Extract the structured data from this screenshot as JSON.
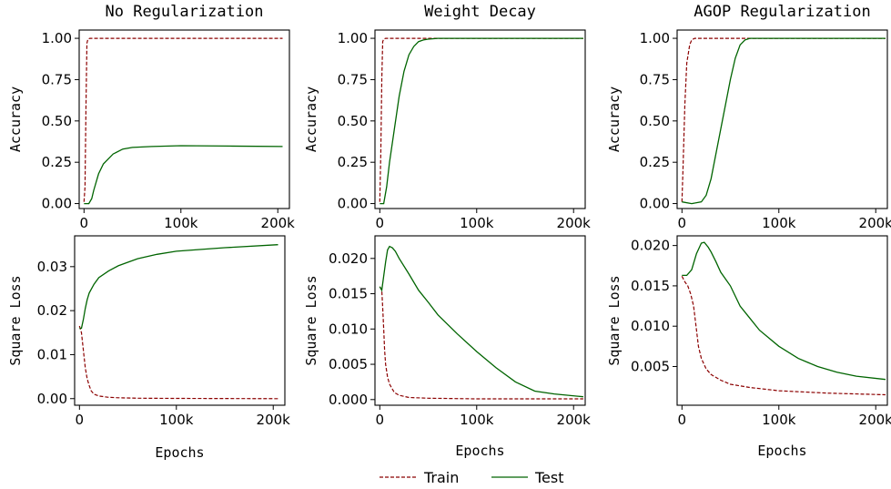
{
  "colors": {
    "train": "#8b0000",
    "test": "#006400"
  },
  "legend": {
    "placement": "bottom-center",
    "items": [
      {
        "key": "train",
        "label": "Train",
        "style": "dashed"
      },
      {
        "key": "test",
        "label": "Test",
        "style": "solid"
      }
    ]
  },
  "chart_data": [
    {
      "type": "line",
      "title": "No Regularization",
      "ylabel": "Accuracy",
      "xlabel": "",
      "xlim": [
        -5000,
        212000
      ],
      "ylim": [
        -0.03,
        1.05
      ],
      "xticks": [
        0,
        100000,
        200000
      ],
      "xtick_labels": [
        "0",
        "100k",
        "200k"
      ],
      "yticks": [
        0,
        0.25,
        0.5,
        0.75,
        1.0
      ],
      "ytick_labels": [
        "0.00",
        "0.25",
        "0.50",
        "0.75",
        "1.00"
      ],
      "series": [
        {
          "name": "Train",
          "x": [
            0,
            1000,
            2000,
            3000,
            4000,
            6000,
            10000,
            205000
          ],
          "y": [
            0.01,
            0.1,
            0.6,
            0.97,
            0.995,
            1.0,
            1.0,
            1.0
          ]
        },
        {
          "name": "Test",
          "x": [
            0,
            2000,
            5000,
            8000,
            10000,
            15000,
            20000,
            30000,
            40000,
            50000,
            70000,
            100000,
            150000,
            205000
          ],
          "y": [
            0.0,
            0.0,
            0.0,
            0.03,
            0.08,
            0.18,
            0.24,
            0.3,
            0.33,
            0.34,
            0.345,
            0.35,
            0.348,
            0.345
          ]
        }
      ]
    },
    {
      "type": "line",
      "title": "Weight Decay",
      "ylabel": "Accuracy",
      "xlabel": "",
      "xlim": [
        -5000,
        212000
      ],
      "ylim": [
        -0.03,
        1.05
      ],
      "xticks": [
        0,
        100000,
        200000
      ],
      "xtick_labels": [
        "0",
        "100k",
        "200k"
      ],
      "yticks": [
        0,
        0.25,
        0.5,
        0.75,
        1.0
      ],
      "ytick_labels": [
        "0.00",
        "0.25",
        "0.50",
        "0.75",
        "1.00"
      ],
      "series": [
        {
          "name": "Train",
          "x": [
            0,
            1000,
            2000,
            3000,
            4000,
            6000,
            10000,
            210000
          ],
          "y": [
            0.01,
            0.3,
            0.75,
            0.98,
            0.995,
            1.0,
            1.0,
            1.0
          ]
        },
        {
          "name": "Test",
          "x": [
            0,
            4000,
            7000,
            10000,
            15000,
            20000,
            25000,
            30000,
            35000,
            40000,
            45000,
            50000,
            60000,
            80000,
            210000
          ],
          "y": [
            0.0,
            0.0,
            0.1,
            0.25,
            0.45,
            0.65,
            0.8,
            0.9,
            0.95,
            0.98,
            0.99,
            0.995,
            1.0,
            1.0,
            1.0
          ]
        }
      ]
    },
    {
      "type": "line",
      "title": "AGOP Regularization",
      "ylabel": "Accuracy",
      "xlabel": "",
      "xlim": [
        -5000,
        212000
      ],
      "ylim": [
        -0.03,
        1.05
      ],
      "xticks": [
        0,
        100000,
        200000
      ],
      "xtick_labels": [
        "0",
        "100k",
        "200k"
      ],
      "yticks": [
        0,
        0.25,
        0.5,
        0.75,
        1.0
      ],
      "ytick_labels": [
        "0.00",
        "0.25",
        "0.50",
        "0.75",
        "1.00"
      ],
      "series": [
        {
          "name": "Train",
          "x": [
            0,
            1000,
            3000,
            5000,
            8000,
            10000,
            13000,
            20000,
            210000
          ],
          "y": [
            0.01,
            0.2,
            0.6,
            0.85,
            0.96,
            0.99,
            1.0,
            1.0,
            1.0
          ]
        },
        {
          "name": "Test",
          "x": [
            0,
            10000,
            20000,
            25000,
            30000,
            35000,
            40000,
            45000,
            50000,
            55000,
            60000,
            65000,
            70000,
            80000,
            210000
          ],
          "y": [
            0.01,
            0.0,
            0.01,
            0.05,
            0.15,
            0.3,
            0.45,
            0.6,
            0.75,
            0.88,
            0.96,
            0.99,
            1.0,
            1.0,
            1.0
          ]
        }
      ]
    },
    {
      "type": "line",
      "title": "",
      "ylabel": "Square Loss",
      "xlabel": "Epochs",
      "xlim": [
        -5000,
        212000
      ],
      "ylim": [
        -0.0015,
        0.037
      ],
      "xticks": [
        0,
        100000,
        200000
      ],
      "xtick_labels": [
        "0",
        "100k",
        "200k"
      ],
      "yticks": [
        0,
        0.01,
        0.02,
        0.03
      ],
      "ytick_labels": [
        "0.00",
        "0.01",
        "0.02",
        "0.03"
      ],
      "series": [
        {
          "name": "Train",
          "x": [
            0,
            2000,
            4000,
            6000,
            8000,
            10000,
            12000,
            15000,
            20000,
            30000,
            40000,
            60000,
            100000,
            205000
          ],
          "y": [
            0.0165,
            0.015,
            0.011,
            0.007,
            0.0045,
            0.003,
            0.0018,
            0.001,
            0.0006,
            0.0003,
            0.0002,
            0.0001,
            5e-05,
            0.0
          ]
        },
        {
          "name": "Test",
          "x": [
            0,
            2000,
            4000,
            6000,
            8000,
            10000,
            15000,
            20000,
            30000,
            40000,
            50000,
            60000,
            80000,
            100000,
            150000,
            205000
          ],
          "y": [
            0.016,
            0.016,
            0.018,
            0.0205,
            0.0225,
            0.024,
            0.026,
            0.0275,
            0.029,
            0.0302,
            0.031,
            0.0318,
            0.0328,
            0.0335,
            0.0343,
            0.035
          ]
        }
      ]
    },
    {
      "type": "line",
      "title": "",
      "ylabel": "Square Loss",
      "xlabel": "Epochs",
      "xlim": [
        -5000,
        212000
      ],
      "ylim": [
        -0.0008,
        0.0232
      ],
      "xticks": [
        0,
        100000,
        200000
      ],
      "xtick_labels": [
        "0",
        "100k",
        "200k"
      ],
      "yticks": [
        0,
        0.005,
        0.01,
        0.015,
        0.02
      ],
      "ytick_labels": [
        "0.000",
        "0.005",
        "0.010",
        "0.015",
        "0.020"
      ],
      "series": [
        {
          "name": "Train",
          "x": [
            0,
            2000,
            3000,
            4000,
            5000,
            6000,
            8000,
            10000,
            15000,
            20000,
            30000,
            50000,
            100000,
            210000
          ],
          "y": [
            0.016,
            0.0155,
            0.013,
            0.01,
            0.007,
            0.005,
            0.0032,
            0.0022,
            0.001,
            0.0006,
            0.0003,
            0.0002,
            0.0001,
            0.0001
          ]
        },
        {
          "name": "Test",
          "x": [
            0,
            2000,
            4000,
            6000,
            8000,
            10000,
            13000,
            16000,
            20000,
            30000,
            40000,
            50000,
            60000,
            80000,
            100000,
            120000,
            140000,
            160000,
            180000,
            210000
          ],
          "y": [
            0.016,
            0.0155,
            0.0175,
            0.0195,
            0.0212,
            0.0217,
            0.0215,
            0.021,
            0.02,
            0.0178,
            0.0155,
            0.0138,
            0.012,
            0.0093,
            0.0068,
            0.0045,
            0.0025,
            0.0012,
            0.0008,
            0.0004
          ]
        }
      ]
    },
    {
      "type": "line",
      "title": "",
      "ylabel": "Square Loss",
      "xlabel": "Epochs",
      "xlim": [
        -5000,
        212000
      ],
      "ylim": [
        0.0002,
        0.0212
      ],
      "xticks": [
        0,
        100000,
        200000
      ],
      "xtick_labels": [
        "0",
        "100k",
        "200k"
      ],
      "yticks": [
        0.005,
        0.01,
        0.015,
        0.02
      ],
      "ytick_labels": [
        "0.005",
        "0.010",
        "0.015",
        "0.020"
      ],
      "series": [
        {
          "name": "Train",
          "x": [
            0,
            3000,
            6000,
            9000,
            12000,
            15000,
            17000,
            20000,
            25000,
            30000,
            40000,
            50000,
            70000,
            100000,
            150000,
            210000
          ],
          "y": [
            0.0162,
            0.0155,
            0.015,
            0.014,
            0.0125,
            0.0095,
            0.0075,
            0.006,
            0.0047,
            0.004,
            0.0033,
            0.0028,
            0.0024,
            0.002,
            0.0017,
            0.0015
          ]
        },
        {
          "name": "Test",
          "x": [
            0,
            5000,
            10000,
            15000,
            20000,
            23000,
            27000,
            30000,
            35000,
            40000,
            50000,
            60000,
            70000,
            80000,
            100000,
            120000,
            140000,
            160000,
            180000,
            210000
          ],
          "y": [
            0.0163,
            0.0163,
            0.017,
            0.019,
            0.0203,
            0.0204,
            0.0198,
            0.0192,
            0.018,
            0.0167,
            0.015,
            0.0125,
            0.011,
            0.0095,
            0.0075,
            0.006,
            0.005,
            0.0043,
            0.0038,
            0.0034
          ]
        }
      ]
    }
  ]
}
